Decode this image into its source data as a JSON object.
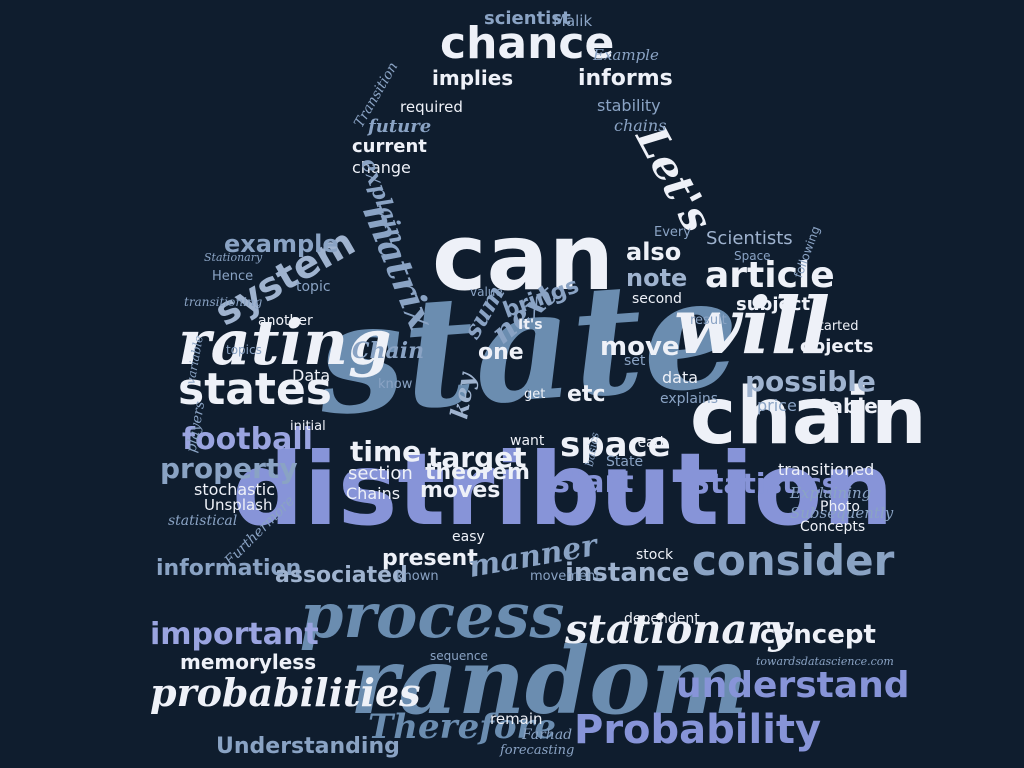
{
  "background": "#0f1d2e",
  "words": [
    {
      "text": "state",
      "color": "#6b8db0"
    },
    {
      "text": "distribution",
      "color": "#8794d8"
    },
    {
      "text": "can",
      "color": "#eef1f8"
    },
    {
      "text": "chain",
      "color": "#eef1f8"
    },
    {
      "text": "will",
      "color": "#eef1f8"
    },
    {
      "text": "random",
      "color": "#6b8db0"
    },
    {
      "text": "process",
      "color": "#6b8db0"
    },
    {
      "text": "rating",
      "color": "#eef1f8"
    },
    {
      "text": "states",
      "color": "#eef1f8"
    },
    {
      "text": "chance",
      "color": "#eef1f8"
    },
    {
      "text": "consider",
      "color": "#8aa3c4"
    },
    {
      "text": "stationary",
      "color": "#eef1f8"
    },
    {
      "text": "probabilities",
      "color": "#eef1f8"
    },
    {
      "text": "Probability",
      "color": "#8794d8"
    },
    {
      "text": "understand",
      "color": "#8794d8"
    },
    {
      "text": "Therefore",
      "color": "#6b8db0"
    },
    {
      "text": "important",
      "color": "#9aa4e0"
    },
    {
      "text": "article",
      "color": "#eef1f8"
    },
    {
      "text": "system",
      "color": "#9fb3cf"
    },
    {
      "text": "Let's",
      "color": "#eef1f8"
    },
    {
      "text": "matrix",
      "color": "#8aa3c4"
    },
    {
      "text": "example",
      "color": "#8aa3c4"
    },
    {
      "text": "football",
      "color": "#9aa4e0"
    },
    {
      "text": "property",
      "color": "#8aa3c4"
    },
    {
      "text": "Statistics",
      "color": "#8794d8"
    },
    {
      "text": "space",
      "color": "#eef1f8"
    },
    {
      "text": "start",
      "color": "#8794d8"
    },
    {
      "text": "target",
      "color": "#eef1f8"
    },
    {
      "text": "time",
      "color": "#eef1f8"
    },
    {
      "text": "possible",
      "color": "#9fb3cf"
    },
    {
      "text": "concept",
      "color": "#eef1f8"
    },
    {
      "text": "memoryless",
      "color": "#eef1f8"
    },
    {
      "text": "Understanding",
      "color": "#8aa3c4"
    },
    {
      "text": "information",
      "color": "#8aa3c4"
    },
    {
      "text": "associated",
      "color": "#9fb3cf"
    },
    {
      "text": "present",
      "color": "#eef1f8"
    },
    {
      "text": "manner",
      "color": "#8aa3c4"
    },
    {
      "text": "instance",
      "color": "#9fb3cf"
    },
    {
      "text": "moves",
      "color": "#eef1f8"
    },
    {
      "text": "theorem",
      "color": "#eef1f8"
    },
    {
      "text": "section",
      "color": "#eef1f8"
    },
    {
      "text": "Chains",
      "color": "#eef1f8"
    },
    {
      "text": "also",
      "color": "#eef1f8"
    },
    {
      "text": "note",
      "color": "#9fb3cf"
    },
    {
      "text": "move",
      "color": "#eef1f8"
    },
    {
      "text": "next",
      "color": "#8aa3c4"
    },
    {
      "text": "sum",
      "color": "#8aa3c4"
    },
    {
      "text": "brings",
      "color": "#8aa3c4"
    },
    {
      "text": "It's",
      "color": "#eef1f8"
    },
    {
      "text": "one",
      "color": "#eef1f8"
    },
    {
      "text": "Chain",
      "color": "#8aa3c4"
    },
    {
      "text": "key",
      "color": "#9fb3cf"
    },
    {
      "text": "etc",
      "color": "#eef1f8"
    },
    {
      "text": "table",
      "color": "#eef1f8"
    },
    {
      "text": "objects",
      "color": "#eef1f8"
    },
    {
      "text": "price",
      "color": "#8aa3c4"
    },
    {
      "text": "data",
      "color": "#eef1f8"
    },
    {
      "text": "explains",
      "color": "#8aa3c4"
    },
    {
      "text": "subject",
      "color": "#eef1f8"
    },
    {
      "text": "Scientists",
      "color": "#9fb3cf"
    },
    {
      "text": "transitioned",
      "color": "#eef1f8"
    },
    {
      "text": "Explaining",
      "color": "#8aa3c4"
    },
    {
      "text": "Subsequently",
      "color": "#8aa3c4"
    },
    {
      "text": "Concepts",
      "color": "#eef1f8"
    },
    {
      "text": "informs",
      "color": "#eef1f8"
    },
    {
      "text": "implies",
      "color": "#eef1f8"
    },
    {
      "text": "scientist",
      "color": "#8aa3c4"
    },
    {
      "text": "Malik",
      "color": "#8aa3c4"
    },
    {
      "text": "stability",
      "color": "#8aa3c4"
    },
    {
      "text": "chains",
      "color": "#8aa3c4"
    },
    {
      "text": "Example",
      "color": "#8aa3c4"
    },
    {
      "text": "future",
      "color": "#8aa3c4"
    },
    {
      "text": "current",
      "color": "#eef1f8"
    },
    {
      "text": "change",
      "color": "#eef1f8"
    },
    {
      "text": "required",
      "color": "#eef1f8"
    },
    {
      "text": "explain",
      "color": "#8aa3c4"
    },
    {
      "text": "Transition",
      "color": "#8aa3c4"
    },
    {
      "text": "Data",
      "color": "#eef1f8"
    },
    {
      "text": "another",
      "color": "#eef1f8"
    },
    {
      "text": "topic",
      "color": "#8aa3c4"
    },
    {
      "text": "Hence",
      "color": "#8aa3c4"
    },
    {
      "text": "stochastic",
      "color": "#eef1f8"
    },
    {
      "text": "players",
      "color": "#8aa3c4"
    },
    {
      "text": "Unsplash",
      "color": "#eef1f8"
    },
    {
      "text": "statistical",
      "color": "#8aa3c4"
    },
    {
      "text": "Furthermore",
      "color": "#8aa3c4"
    },
    {
      "text": "dependent",
      "color": "#eef1f8"
    },
    {
      "text": "towardsdatascience.com",
      "color": "#8aa3c4"
    },
    {
      "text": "Photo",
      "color": "#eef1f8"
    },
    {
      "text": "remain",
      "color": "#eef1f8"
    },
    {
      "text": "Farhad",
      "color": "#8aa3c4"
    },
    {
      "text": "forecasting",
      "color": "#8aa3c4"
    },
    {
      "text": "known",
      "color": "#8aa3c4"
    },
    {
      "text": "movement",
      "color": "#8aa3c4"
    },
    {
      "text": "stock",
      "color": "#eef1f8"
    },
    {
      "text": "easy",
      "color": "#eef1f8"
    },
    {
      "text": "State",
      "color": "#8aa3c4"
    },
    {
      "text": "read",
      "color": "#eef1f8"
    },
    {
      "text": "second",
      "color": "#eef1f8"
    },
    {
      "text": "result",
      "color": "#8aa3c4"
    },
    {
      "text": "started",
      "color": "#eef1f8"
    },
    {
      "text": "set",
      "color": "#8aa3c4"
    },
    {
      "text": "initial",
      "color": "#eef1f8"
    },
    {
      "text": "want",
      "color": "#eef1f8"
    },
    {
      "text": "get",
      "color": "#eef1f8"
    },
    {
      "text": "know",
      "color": "#8aa3c4"
    },
    {
      "text": "following",
      "color": "#8aa3c4"
    },
    {
      "text": "variable",
      "color": "#8aa3c4"
    },
    {
      "text": "sequence",
      "color": "#8aa3c4"
    },
    {
      "text": "Every",
      "color": "#8aa3c4"
    },
    {
      "text": "value",
      "color": "#8aa3c4"
    },
    {
      "text": "transitioning",
      "color": "#8aa3c4"
    },
    {
      "text": "topics",
      "color": "#8aa3c4"
    },
    {
      "text": "basics",
      "color": "#8aa3c4"
    },
    {
      "text": "Space",
      "color": "#8aa3c4"
    },
    {
      "text": "Stationary",
      "color": "#8aa3c4"
    }
  ]
}
